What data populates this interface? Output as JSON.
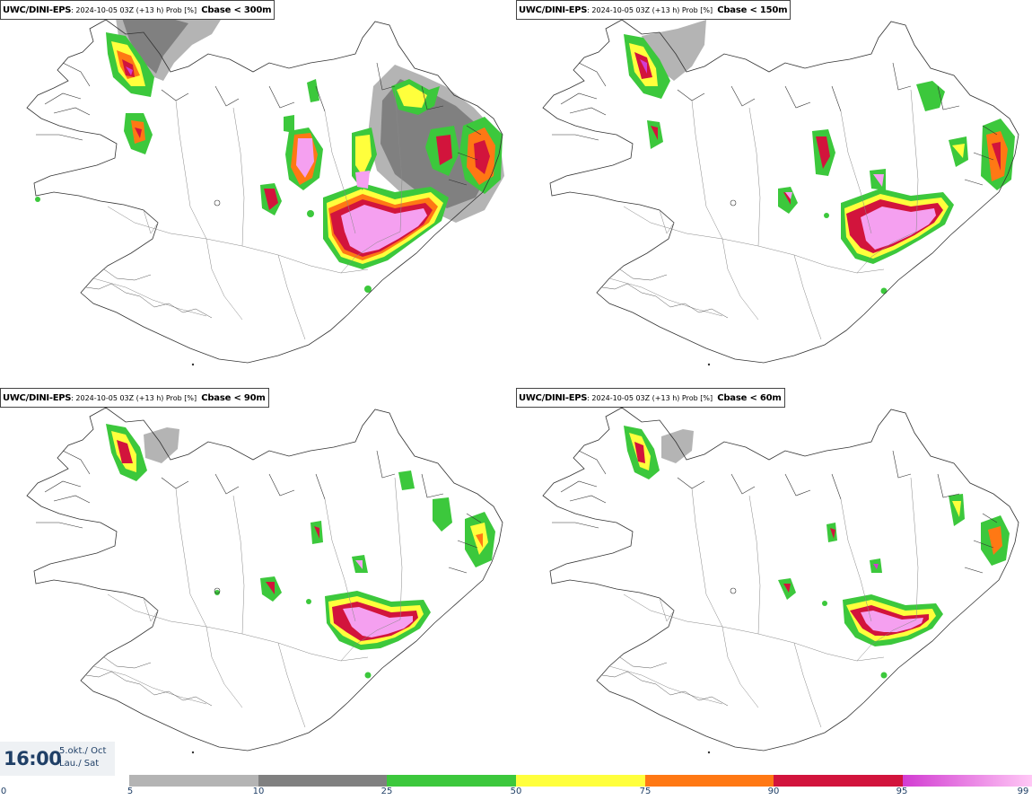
{
  "panels": [
    {
      "model": "UWC/DINI-EPS",
      "run": ": 2024-10-05 03Z (+13 h) Prob [%]",
      "variable": "Cbase < 300m"
    },
    {
      "model": "UWC/DINI-EPS",
      "run": ": 2024-10-05 03Z (+13 h) Prob [%]",
      "variable": "Cbase < 150m"
    },
    {
      "model": "UWC/DINI-EPS",
      "run": ": 2024-10-05 03Z (+13 h) Prob [%]",
      "variable": "Cbase < 90m"
    },
    {
      "model": "UWC/DINI-EPS",
      "run": ": 2024-10-05 03Z (+13 h) Prob [%]",
      "variable": "Cbase < 60m"
    }
  ],
  "timestamp": {
    "time": "16:00",
    "date": "5.okt./ Oct",
    "day": "Lau./ Sat"
  },
  "colorbar": {
    "ticks": [
      "0",
      "5",
      "10",
      "25",
      "50",
      "75",
      "90",
      "95",
      "99"
    ],
    "segments": [
      {
        "from": "5",
        "to": "10",
        "color": "#b4b4b4"
      },
      {
        "from": "10",
        "to": "25",
        "color": "#808080"
      },
      {
        "from": "25",
        "to": "50",
        "color": "#3cc83c"
      },
      {
        "from": "50",
        "to": "75",
        "color": "#ffff3c"
      },
      {
        "from": "75",
        "to": "90",
        "color": "#ff7814"
      },
      {
        "from": "90",
        "to": "95",
        "color": "#d2143c"
      },
      {
        "from": "95",
        "to": "99",
        "color": "#d23cd2",
        "to_color": "#ffc8f5"
      }
    ]
  },
  "colors": {
    "gray5": "#b4b4b4",
    "gray10": "#808080",
    "green": "#3cc83c",
    "yellow": "#ffff3c",
    "orange": "#ff7814",
    "red": "#d2143c",
    "magenta": "#d23cd2",
    "pink": "#f5a0f0",
    "coast": "#333333",
    "border": "#888888"
  }
}
